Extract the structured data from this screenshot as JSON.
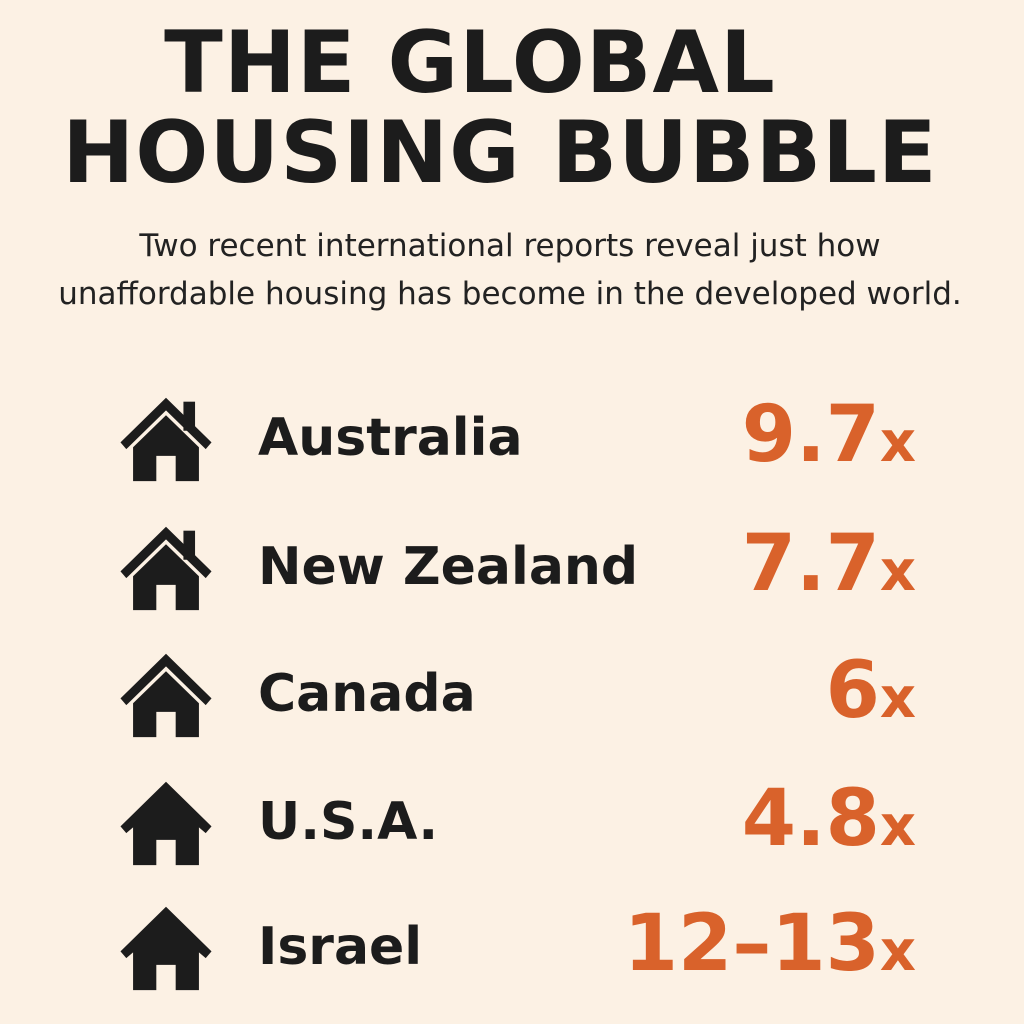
{
  "title": {
    "line1": "THE GLOBAL",
    "line2": "HOUSING BUBBLE"
  },
  "subtitle": "Two recent international reports reveal just how unaffordable housing has become in the developed world.",
  "accent_color": "#d9622b",
  "rows": [
    {
      "country": "Australia",
      "value": "9.7",
      "suffix": "x",
      "icon": "house-chimney-icon"
    },
    {
      "country": "New Zealand",
      "value": "7.7",
      "suffix": "x",
      "icon": "house-chimney-icon"
    },
    {
      "country": "Canada",
      "value": "6",
      "suffix": "x",
      "icon": "house-icon"
    },
    {
      "country": "U.S.A.",
      "value": "4.8",
      "suffix": "x",
      "icon": "house-icon"
    },
    {
      "country": "Israel",
      "value": "12–13",
      "suffix": "x",
      "icon": "house-icon"
    }
  ]
}
